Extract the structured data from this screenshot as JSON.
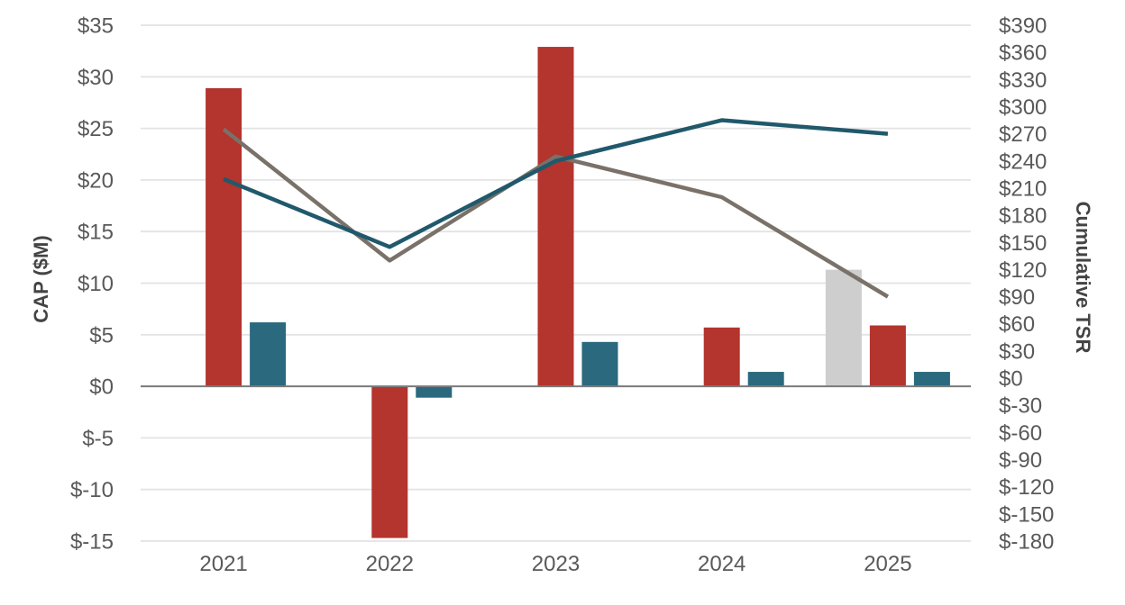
{
  "chart_data": {
    "type": "combo-bar-line-dual-axis",
    "title": "",
    "legend": "none",
    "grid": true,
    "categories": [
      "2021",
      "2022",
      "2023",
      "2024",
      "2025"
    ],
    "bar_series": [
      {
        "name": "silver-bar",
        "color": "#CECECE",
        "axis": "left",
        "values": [
          null,
          null,
          null,
          null,
          11.3
        ]
      },
      {
        "name": "red-bar",
        "color": "#B4342E",
        "axis": "left",
        "values": [
          28.9,
          -14.7,
          32.9,
          5.7,
          5.9
        ]
      },
      {
        "name": "teal-bar",
        "color": "#2A697E",
        "axis": "left",
        "values": [
          6.2,
          -1.1,
          4.3,
          1.4,
          1.4
        ]
      }
    ],
    "line_series": [
      {
        "name": "gray-line",
        "color": "#7A7169",
        "axis": "right",
        "values": [
          275,
          130,
          245,
          200,
          90
        ]
      },
      {
        "name": "teal-line",
        "color": "#20596B",
        "axis": "right",
        "values": [
          220,
          145,
          240,
          285,
          270
        ]
      }
    ],
    "left_axis": {
      "title": "CAP ($M)",
      "min": -15,
      "max": 35,
      "step": 5,
      "tick_labels": [
        "$35",
        "$30",
        "$25",
        "$20",
        "$15",
        "$10",
        "$5",
        "$0",
        "$-5",
        "$-10",
        "$-15"
      ],
      "tick_values": [
        35,
        30,
        25,
        20,
        15,
        10,
        5,
        0,
        -5,
        -10,
        -15
      ]
    },
    "right_axis": {
      "title": "Cumulative TSR",
      "min": -180,
      "max": 390,
      "step": 30,
      "tick_labels": [
        "$390",
        "$360",
        "$330",
        "$300",
        "$270",
        "$240",
        "$210",
        "$180",
        "$150",
        "$120",
        "$90",
        "$60",
        "$30",
        "$0",
        "$-30",
        "$-60",
        "$-90",
        "$-120",
        "$-150",
        "$-180"
      ],
      "tick_values": [
        390,
        360,
        330,
        300,
        270,
        240,
        210,
        180,
        150,
        120,
        90,
        60,
        30,
        0,
        -30,
        -60,
        -90,
        -120,
        -150,
        -180
      ]
    },
    "colors": {
      "gridline": "#E3E3E3",
      "zero_line": "#7A7A7A",
      "tick_text": "#595959",
      "axis_title": "#444444"
    }
  }
}
